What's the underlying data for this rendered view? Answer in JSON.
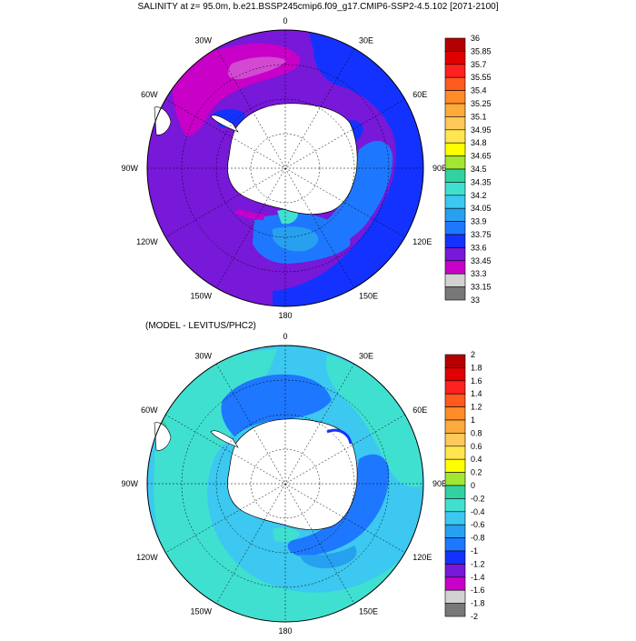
{
  "top_panel": {
    "title": "SALINITY at z=  95.0m, b.e21.BSSP245cmip6.f09_g17.CMIP6-SSP2-4.5.102 [2071-2100]",
    "lon_labels": [
      "0",
      "30E",
      "60E",
      "90E",
      "120E",
      "150E",
      "180",
      "150W",
      "120W",
      "90W",
      "60W",
      "30W"
    ],
    "colorbar": {
      "labels": [
        "36",
        "35.85",
        "35.7",
        "35.55",
        "35.4",
        "35.25",
        "35.1",
        "34.95",
        "34.8",
        "34.65",
        "34.5",
        "34.35",
        "34.2",
        "34.05",
        "33.9",
        "33.75",
        "33.6",
        "33.45",
        "33.3",
        "33.15",
        "33"
      ],
      "colors": [
        "#b40000",
        "#e00000",
        "#ff2020",
        "#ff5a1e",
        "#ff8c28",
        "#ffaa3c",
        "#ffc85a",
        "#ffe650",
        "#ffff00",
        "#a0e632",
        "#32d2a0",
        "#40e0d0",
        "#3cc8f0",
        "#28a0f0",
        "#1e78ff",
        "#1432ff",
        "#7818d8",
        "#c800c8",
        "#d2d2d2",
        "#787878"
      ]
    }
  },
  "bottom_panel": {
    "title": "(MODEL - LEVITUS/PHC2)",
    "lon_labels": [
      "0",
      "30E",
      "60E",
      "90E",
      "120E",
      "150E",
      "180",
      "150W",
      "120W",
      "90W",
      "60W",
      "30W"
    ],
    "colorbar": {
      "labels": [
        "2",
        "1.8",
        "1.6",
        "1.4",
        "1.2",
        "1",
        "0.8",
        "0.6",
        "0.4",
        "0.2",
        "0",
        "-0.2",
        "-0.4",
        "-0.6",
        "-0.8",
        "-1",
        "-1.2",
        "-1.4",
        "-1.6",
        "-1.8",
        "-2"
      ],
      "colors": [
        "#b40000",
        "#e00000",
        "#ff2020",
        "#ff5a1e",
        "#ff8c28",
        "#ffaa3c",
        "#ffc85a",
        "#ffe650",
        "#ffff00",
        "#a0e632",
        "#32d2a0",
        "#40e0d0",
        "#3cc8f0",
        "#28a0f0",
        "#1e78ff",
        "#1432ff",
        "#7818d8",
        "#c800c8",
        "#d2d2d2",
        "#787878"
      ]
    }
  }
}
